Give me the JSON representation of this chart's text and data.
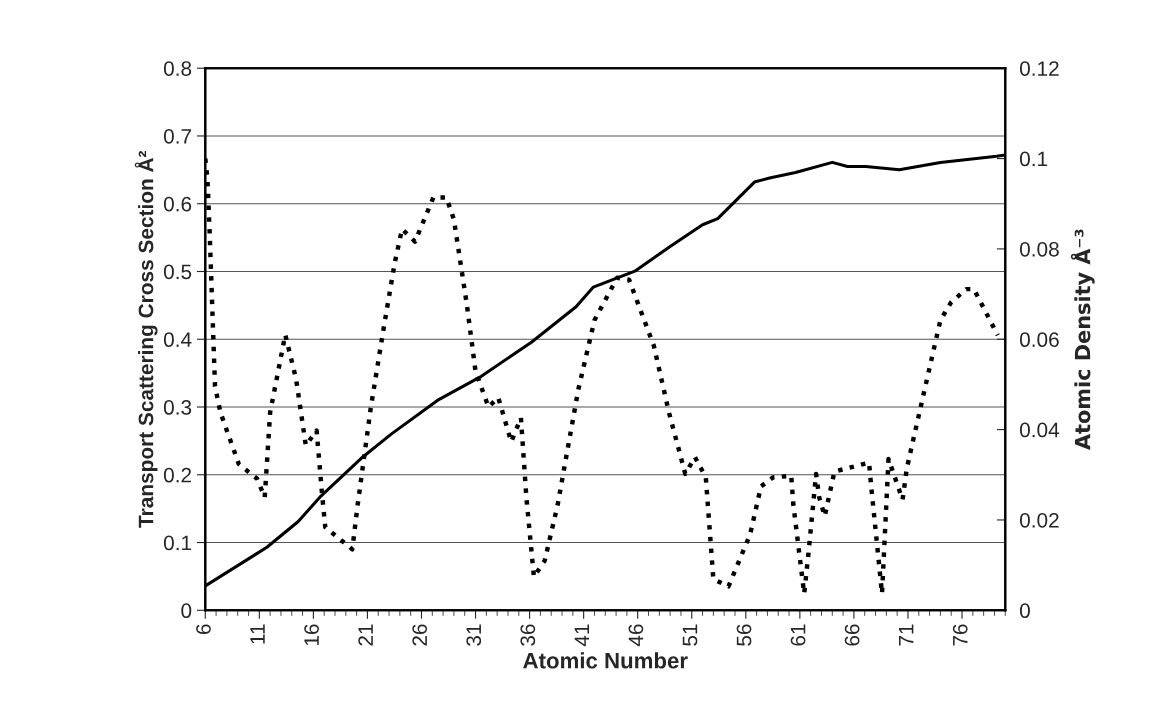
{
  "chart_data": {
    "type": "line",
    "xlabel": "Atomic Number",
    "ylabel": "Transport Scattering Cross Section Å²",
    "y2label": "Atomic Density Å⁻³",
    "xlim": [
      6,
      80
    ],
    "xticks": [
      6,
      11,
      16,
      21,
      26,
      31,
      36,
      41,
      46,
      51,
      56,
      61,
      66,
      71,
      76
    ],
    "ylim": [
      0,
      0.8
    ],
    "yticks": [
      0,
      0.1,
      0.2,
      0.3,
      0.4,
      0.5,
      0.6,
      0.7,
      0.8
    ],
    "y2lim": [
      0,
      0.12
    ],
    "y2ticks": [
      0,
      0.02,
      0.04,
      0.06,
      0.08,
      0.1,
      0.12
    ],
    "grid": "y",
    "marker": "none",
    "series": [
      {
        "color": "#000000",
        "line_style": "solid",
        "x": [
          6,
          11.7,
          14.6,
          16.6,
          20.4,
          23.2,
          27.6,
          31.4,
          36.2,
          40.3,
          41.9,
          45.8,
          49.0,
          52.0,
          53.4,
          56.8,
          58.2,
          60.6,
          64.0,
          65.4,
          67.1,
          70.2,
          74.0,
          79.2,
          80
        ],
        "values": [
          0.036,
          0.093,
          0.131,
          0.167,
          0.224,
          0.26,
          0.311,
          0.344,
          0.396,
          0.448,
          0.477,
          0.501,
          0.537,
          0.569,
          0.578,
          0.632,
          0.638,
          0.646,
          0.661,
          0.655,
          0.655,
          0.65,
          0.661,
          0.67,
          0.672
        ]
      },
      {
        "color": "#000000",
        "line_style": "dotted",
        "axis": "y2",
        "x": [
          6,
          6.2,
          6.4,
          6.9,
          7.4,
          9.1,
          10.8,
          11.5,
          12,
          13.4,
          14.4,
          15.3,
          16.3,
          16.8,
          17.1,
          19.6,
          20.1,
          21.3,
          22.4,
          23.5,
          24.2,
          25.4,
          27.1,
          28.3,
          29,
          30.2,
          31,
          32.2,
          33.1,
          34.3,
          35.2,
          35.7,
          36.4,
          37.4,
          38.6,
          40.5,
          42.0,
          44.1,
          45.2,
          47.5,
          48.9,
          50.4,
          51.3,
          52.3,
          53.0,
          54.4,
          56.4,
          57.4,
          58.5,
          60.2,
          60.4,
          61.4,
          61.8,
          62.5,
          62.8,
          63.3,
          64.2,
          67.4,
          67.6,
          68.6,
          69.2,
          70.5,
          70.9,
          72.6,
          74.0,
          75.0,
          76.4,
          77.1,
          79.3
        ],
        "values": [
          0.1,
          0.0955,
          0.084,
          0.0496,
          0.0438,
          0.0324,
          0.0291,
          0.025,
          0.0438,
          0.061,
          0.0512,
          0.0365,
          0.0398,
          0.0258,
          0.0184,
          0.0135,
          0.0234,
          0.0447,
          0.061,
          0.0766,
          0.0844,
          0.0816,
          0.0914,
          0.0914,
          0.0865,
          0.0676,
          0.0529,
          0.045,
          0.0471,
          0.0373,
          0.0426,
          0.025,
          0.0074,
          0.011,
          0.0234,
          0.0488,
          0.0642,
          0.0736,
          0.0732,
          0.0585,
          0.0437,
          0.0302,
          0.0339,
          0.0294,
          0.0069,
          0.0053,
          0.0168,
          0.0274,
          0.0294,
          0.0298,
          0.0233,
          0.0037,
          0.0127,
          0.0302,
          0.0249,
          0.0208,
          0.0307,
          0.0327,
          0.0274,
          0.0037,
          0.0335,
          0.0245,
          0.0315,
          0.0495,
          0.0642,
          0.0682,
          0.0711,
          0.0711,
          0.0609
        ]
      }
    ]
  }
}
